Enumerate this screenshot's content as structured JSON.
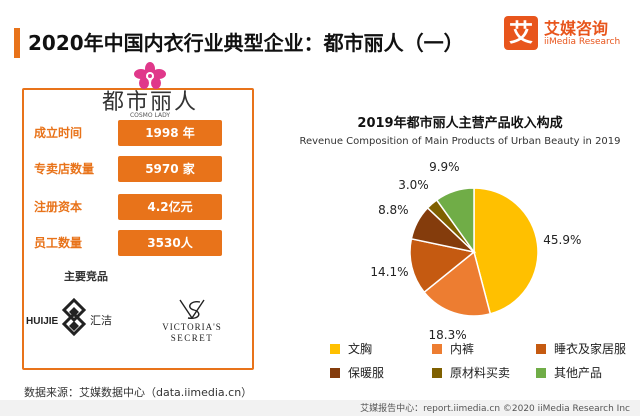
{
  "page": {
    "title": "2020年中国内衣行业典型企业：都市丽人（一）"
  },
  "brand": {
    "mark": "艾",
    "name": "艾媒咨询",
    "sub": "iiMedia Research",
    "color": "#e8551c"
  },
  "company": {
    "logo_text": "都市丽人",
    "logo_sub": "COSMO LADY",
    "info": [
      {
        "label": "成立时间",
        "value": "1998 年"
      },
      {
        "label": "专卖店数量",
        "value": "5970 家"
      },
      {
        "label": "注册资本",
        "value": "4.2亿元"
      },
      {
        "label": "员工数量",
        "value": "3530人"
      }
    ],
    "competitors_label": "主要竞品",
    "competitors": [
      {
        "name": "HUIJIE 汇洁",
        "text_left": "HUIJIE",
        "text_right": "汇洁"
      },
      {
        "name": "VICTORIA'S SECRET",
        "line1": "VICTORIA'S",
        "line2": "SECRET"
      }
    ]
  },
  "source": "数据来源：艾媒数据中心（data.iimedia.cn）",
  "footer": "艾媒报告中心：report.iimedia.cn  ©2020  iiMedia Research  Inc",
  "chart_data": {
    "type": "pie",
    "title": "2019年都市丽人主营产品收入构成",
    "subtitle": "Revenue Composition of Main Products of Urban Beauty in 2019",
    "legend_position": "bottom",
    "slices": [
      {
        "name": "文胸",
        "value": 45.9,
        "label": "45.9%",
        "color": "#ffc000"
      },
      {
        "name": "内裤",
        "value": 18.3,
        "label": "18.3%",
        "color": "#ed7d31"
      },
      {
        "name": "睡衣及家居服",
        "value": 14.1,
        "label": "14.1%",
        "color": "#c55a11"
      },
      {
        "name": "保暖服",
        "value": 8.8,
        "label": "8.8%",
        "color": "#843c0c"
      },
      {
        "name": "原材料买卖",
        "value": 3.0,
        "label": "3.0%",
        "color": "#7f6000"
      },
      {
        "name": "其他产品",
        "value": 9.9,
        "label": "9.9%",
        "color": "#70ad47"
      }
    ]
  }
}
